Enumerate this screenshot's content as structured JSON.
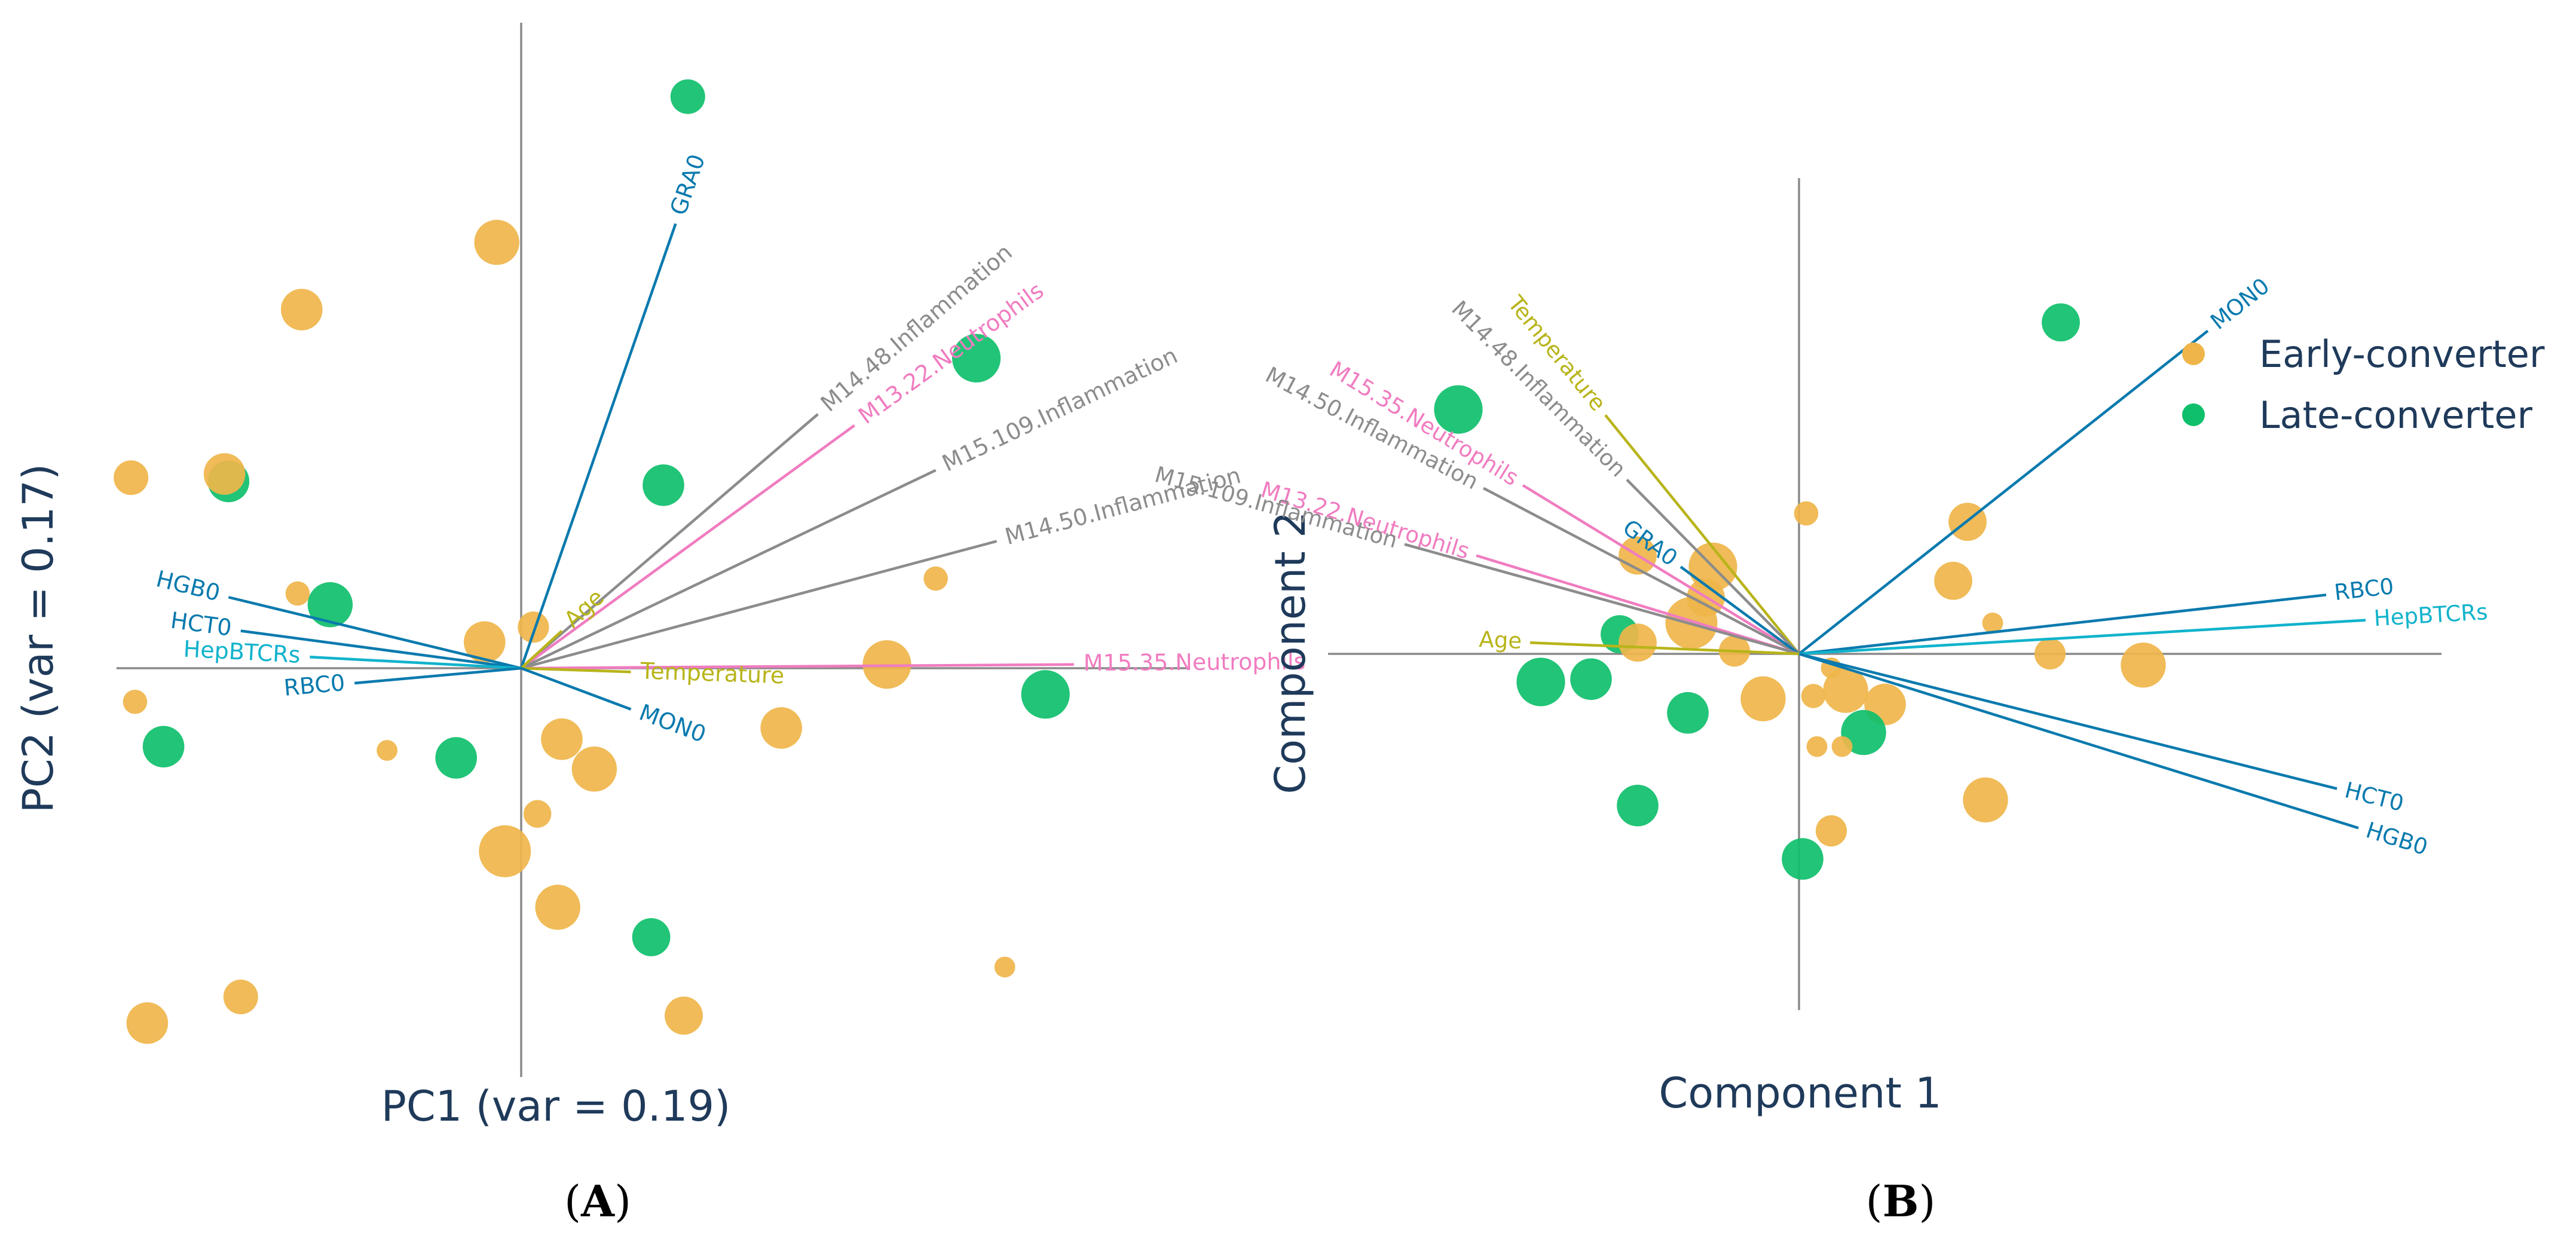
{
  "colors": {
    "early": "#efb54a",
    "late": "#0fbf6b",
    "blue": "#0a7aae",
    "cyan": "#11b3cc",
    "gray": "#8c8c8c",
    "pink": "#f07cc0",
    "olive": "#b8b41a",
    "axis": "#8a8a8a",
    "title": "#1f3a5a"
  },
  "chart_data": [
    {
      "type": "scatter",
      "panel_label": "A",
      "xlabel": "PC1 (var = 0.19)",
      "ylabel": "PC2 (var = 0.17)",
      "xlim": [
        -1.0,
        1.65
      ],
      "ylim": [
        -1.0,
        1.6
      ],
      "points": [
        {
          "group": "Late-converter",
          "x": 0.41,
          "y": 1.53,
          "size": 1.0
        },
        {
          "group": "Early-converter",
          "x": -0.06,
          "y": 1.14,
          "size": 1.3
        },
        {
          "group": "Early-converter",
          "x": -0.54,
          "y": 0.96,
          "size": 1.2
        },
        {
          "group": "Late-converter",
          "x": 1.12,
          "y": 0.83,
          "size": 1.4
        },
        {
          "group": "Late-converter",
          "x": 0.35,
          "y": 0.49,
          "size": 1.2
        },
        {
          "group": "Early-converter",
          "x": -0.96,
          "y": 0.51,
          "size": 1.0
        },
        {
          "group": "Late-converter",
          "x": -0.72,
          "y": 0.5,
          "size": 1.2
        },
        {
          "group": "Early-converter",
          "x": -0.73,
          "y": 0.52,
          "size": 1.2
        },
        {
          "group": "Early-converter",
          "x": -0.55,
          "y": 0.2,
          "size": 0.7
        },
        {
          "group": "Late-converter",
          "x": -0.47,
          "y": 0.17,
          "size": 1.3
        },
        {
          "group": "Early-converter",
          "x": 0.03,
          "y": 0.11,
          "size": 0.9
        },
        {
          "group": "Early-converter",
          "x": -0.09,
          "y": 0.07,
          "size": 1.2
        },
        {
          "group": "Early-converter",
          "x": 1.02,
          "y": 0.24,
          "size": 0.7
        },
        {
          "group": "Early-converter",
          "x": 0.9,
          "y": 0.01,
          "size": 1.4
        },
        {
          "group": "Late-converter",
          "x": 1.29,
          "y": -0.07,
          "size": 1.4
        },
        {
          "group": "Early-converter",
          "x": -0.95,
          "y": -0.09,
          "size": 0.7
        },
        {
          "group": "Late-converter",
          "x": -0.88,
          "y": -0.21,
          "size": 1.2
        },
        {
          "group": "Early-converter",
          "x": -0.33,
          "y": -0.22,
          "size": 0.6
        },
        {
          "group": "Late-converter",
          "x": -0.16,
          "y": -0.24,
          "size": 1.2
        },
        {
          "group": "Early-converter",
          "x": 0.1,
          "y": -0.19,
          "size": 1.2
        },
        {
          "group": "Early-converter",
          "x": 0.18,
          "y": -0.27,
          "size": 1.3
        },
        {
          "group": "Early-converter",
          "x": 0.64,
          "y": -0.16,
          "size": 1.2
        },
        {
          "group": "Early-converter",
          "x": 0.04,
          "y": -0.39,
          "size": 0.8
        },
        {
          "group": "Early-converter",
          "x": -0.04,
          "y": -0.49,
          "size": 1.5
        },
        {
          "group": "Early-converter",
          "x": 0.09,
          "y": -0.64,
          "size": 1.3
        },
        {
          "group": "Late-converter",
          "x": 0.32,
          "y": -0.72,
          "size": 1.1
        },
        {
          "group": "Early-converter",
          "x": 1.19,
          "y": -0.8,
          "size": 0.6
        },
        {
          "group": "Early-converter",
          "x": -0.69,
          "y": -0.88,
          "size": 1.0
        },
        {
          "group": "Early-converter",
          "x": 0.4,
          "y": -0.93,
          "size": 1.1
        },
        {
          "group": "Early-converter",
          "x": -0.92,
          "y": -0.95,
          "size": 1.2
        }
      ],
      "loadings": [
        {
          "label": "GRA0",
          "color": "blue",
          "x": 0.38,
          "y": 1.19
        },
        {
          "label": "M14.48.Inflammation",
          "color": "gray",
          "x": 0.73,
          "y": 0.68
        },
        {
          "label": "M13.22.Neutrophils",
          "color": "pink",
          "x": 0.82,
          "y": 0.65
        },
        {
          "label": "M15.109.Inflammation",
          "color": "gray",
          "x": 1.02,
          "y": 0.53
        },
        {
          "label": "M14.50.Inflammation",
          "color": "gray",
          "x": 1.17,
          "y": 0.34
        },
        {
          "label": "M15.35.Neutrophils",
          "color": "pink",
          "x": 1.36,
          "y": 0.01
        },
        {
          "label": "Age",
          "color": "olive",
          "x": 0.1,
          "y": 0.1
        },
        {
          "label": "Temperature",
          "color": "olive",
          "x": 0.27,
          "y": -0.01
        },
        {
          "label": "MON0",
          "color": "blue",
          "x": 0.27,
          "y": -0.11
        },
        {
          "label": "HGB0",
          "color": "blue",
          "x": -0.72,
          "y": 0.19
        },
        {
          "label": "HCT0",
          "color": "blue",
          "x": -0.69,
          "y": 0.1
        },
        {
          "label": "HepBTCRs",
          "color": "cyan",
          "x": -0.52,
          "y": 0.03
        },
        {
          "label": "RBC0",
          "color": "blue",
          "x": -0.41,
          "y": -0.04
        }
      ]
    },
    {
      "type": "scatter",
      "panel_label": "B",
      "xlabel": "Component 1",
      "ylabel": "Component 2",
      "xlim": [
        -1.0,
        1.0
      ],
      "ylim": [
        -1.0,
        1.4
      ],
      "legend": {
        "position": "top-right",
        "entries": [
          "Early-converter",
          "Late-converter"
        ]
      },
      "points": [
        {
          "group": "Late-converter",
          "x": 0.73,
          "y": 1.18,
          "size": 1.1
        },
        {
          "group": "Late-converter",
          "x": -0.95,
          "y": 0.87,
          "size": 1.4
        },
        {
          "group": "Early-converter",
          "x": 0.02,
          "y": 0.5,
          "size": 0.7
        },
        {
          "group": "Early-converter",
          "x": 0.47,
          "y": 0.47,
          "size": 1.1
        },
        {
          "group": "Early-converter",
          "x": -0.45,
          "y": 0.35,
          "size": 1.1
        },
        {
          "group": "Early-converter",
          "x": -0.24,
          "y": 0.31,
          "size": 1.4
        },
        {
          "group": "Early-converter",
          "x": 0.43,
          "y": 0.26,
          "size": 1.1
        },
        {
          "group": "Early-converter",
          "x": -0.26,
          "y": 0.2,
          "size": 1.1
        },
        {
          "group": "Early-converter",
          "x": -0.3,
          "y": 0.11,
          "size": 1.5
        },
        {
          "group": "Early-converter",
          "x": 0.54,
          "y": 0.11,
          "size": 0.6
        },
        {
          "group": "Late-converter",
          "x": -0.5,
          "y": 0.07,
          "size": 1.1
        },
        {
          "group": "Early-converter",
          "x": -0.45,
          "y": 0.04,
          "size": 1.1
        },
        {
          "group": "Early-converter",
          "x": -0.18,
          "y": 0.01,
          "size": 0.9
        },
        {
          "group": "Early-converter",
          "x": 0.7,
          "y": 0.0,
          "size": 0.9
        },
        {
          "group": "Early-converter",
          "x": 0.96,
          "y": -0.04,
          "size": 1.3
        },
        {
          "group": "Early-converter",
          "x": 0.09,
          "y": -0.05,
          "size": 0.6
        },
        {
          "group": "Late-converter",
          "x": -0.72,
          "y": -0.1,
          "size": 1.4
        },
        {
          "group": "Late-converter",
          "x": -0.58,
          "y": -0.09,
          "size": 1.2
        },
        {
          "group": "Early-converter",
          "x": 0.13,
          "y": -0.13,
          "size": 1.3
        },
        {
          "group": "Early-converter",
          "x": 0.04,
          "y": -0.15,
          "size": 0.7
        },
        {
          "group": "Early-converter",
          "x": -0.1,
          "y": -0.16,
          "size": 1.3
        },
        {
          "group": "Early-converter",
          "x": 0.24,
          "y": -0.18,
          "size": 1.2
        },
        {
          "group": "Late-converter",
          "x": -0.31,
          "y": -0.21,
          "size": 1.2
        },
        {
          "group": "Late-converter",
          "x": 0.18,
          "y": -0.28,
          "size": 1.3
        },
        {
          "group": "Early-converter",
          "x": 0.05,
          "y": -0.33,
          "size": 0.6
        },
        {
          "group": "Early-converter",
          "x": 0.12,
          "y": -0.33,
          "size": 0.6
        },
        {
          "group": "Early-converter",
          "x": 0.52,
          "y": -0.52,
          "size": 1.3
        },
        {
          "group": "Late-converter",
          "x": -0.45,
          "y": -0.54,
          "size": 1.2
        },
        {
          "group": "Early-converter",
          "x": 0.09,
          "y": -0.63,
          "size": 0.9
        },
        {
          "group": "Late-converter",
          "x": 0.01,
          "y": -0.73,
          "size": 1.2
        }
      ],
      "loadings": [
        {
          "label": "MON0",
          "color": "blue",
          "x": 1.14,
          "y": 1.15
        },
        {
          "label": "RBC0",
          "color": "blue",
          "x": 1.47,
          "y": 0.21
        },
        {
          "label": "HepBTCRs",
          "color": "cyan",
          "x": 1.58,
          "y": 0.12
        },
        {
          "label": "HCT0",
          "color": "blue",
          "x": 1.5,
          "y": -0.48
        },
        {
          "label": "HGB0",
          "color": "blue",
          "x": 1.56,
          "y": -0.62
        },
        {
          "label": "Temperature",
          "color": "olive",
          "x": -0.54,
          "y": 0.85
        },
        {
          "label": "M14.48.Inflammation",
          "color": "gray",
          "x": -0.48,
          "y": 0.62
        },
        {
          "label": "M15.35.Neutrophils",
          "color": "pink",
          "x": -0.77,
          "y": 0.6
        },
        {
          "label": "M14.50.Inflammation",
          "color": "gray",
          "x": -0.88,
          "y": 0.59
        },
        {
          "label": "GRA0",
          "color": "blue",
          "x": -0.33,
          "y": 0.31
        },
        {
          "label": "M13.22.Neutrophils",
          "color": "pink",
          "x": -0.9,
          "y": 0.35
        },
        {
          "label": "M15.109.Inflammation",
          "color": "gray",
          "x": -1.1,
          "y": 0.39
        },
        {
          "label": "Age",
          "color": "olive",
          "x": -0.75,
          "y": 0.04
        }
      ]
    }
  ]
}
